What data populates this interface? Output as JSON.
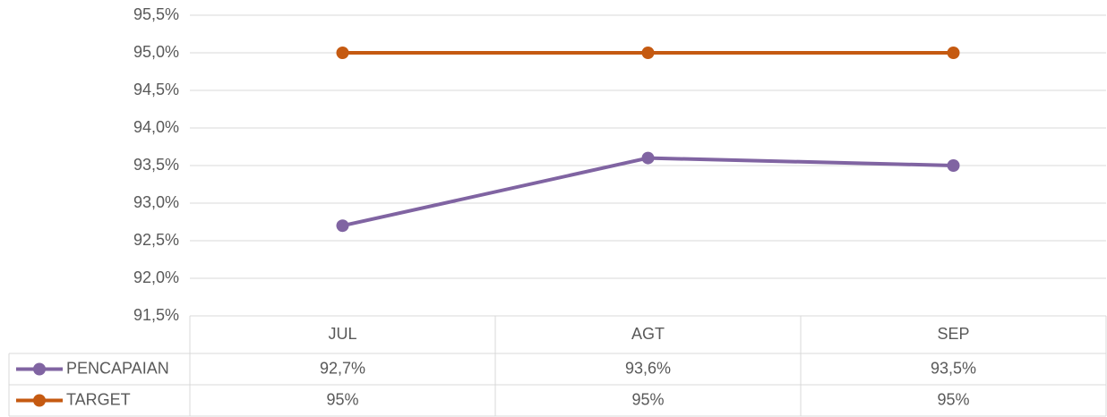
{
  "chart_data": {
    "type": "line",
    "categories": [
      "JUL",
      "AGT",
      "SEP"
    ],
    "series": [
      {
        "name": "PENCAPAIAN",
        "color": "#8064a2",
        "values": [
          92.7,
          93.6,
          93.5
        ],
        "value_labels": [
          "92,7%",
          "93,6%",
          "93,5%"
        ]
      },
      {
        "name": "TARGET",
        "color": "#c55a11",
        "values": [
          95,
          95,
          95
        ],
        "value_labels": [
          "95%",
          "95%",
          "95%"
        ]
      }
    ],
    "ylim": [
      91.5,
      95.5
    ],
    "yticks": [
      {
        "value": 91.5,
        "label": "91,5%"
      },
      {
        "value": 92,
        "label": "92,0%"
      },
      {
        "value": 92.5,
        "label": "92,5%"
      },
      {
        "value": 93,
        "label": "93,0%"
      },
      {
        "value": 93.5,
        "label": "93,5%"
      },
      {
        "value": 94,
        "label": "94,0%"
      },
      {
        "value": 94.5,
        "label": "94,5%"
      },
      {
        "value": 95,
        "label": "95,0%"
      },
      {
        "value": 95.5,
        "label": "95,5%"
      }
    ],
    "grid": true
  }
}
